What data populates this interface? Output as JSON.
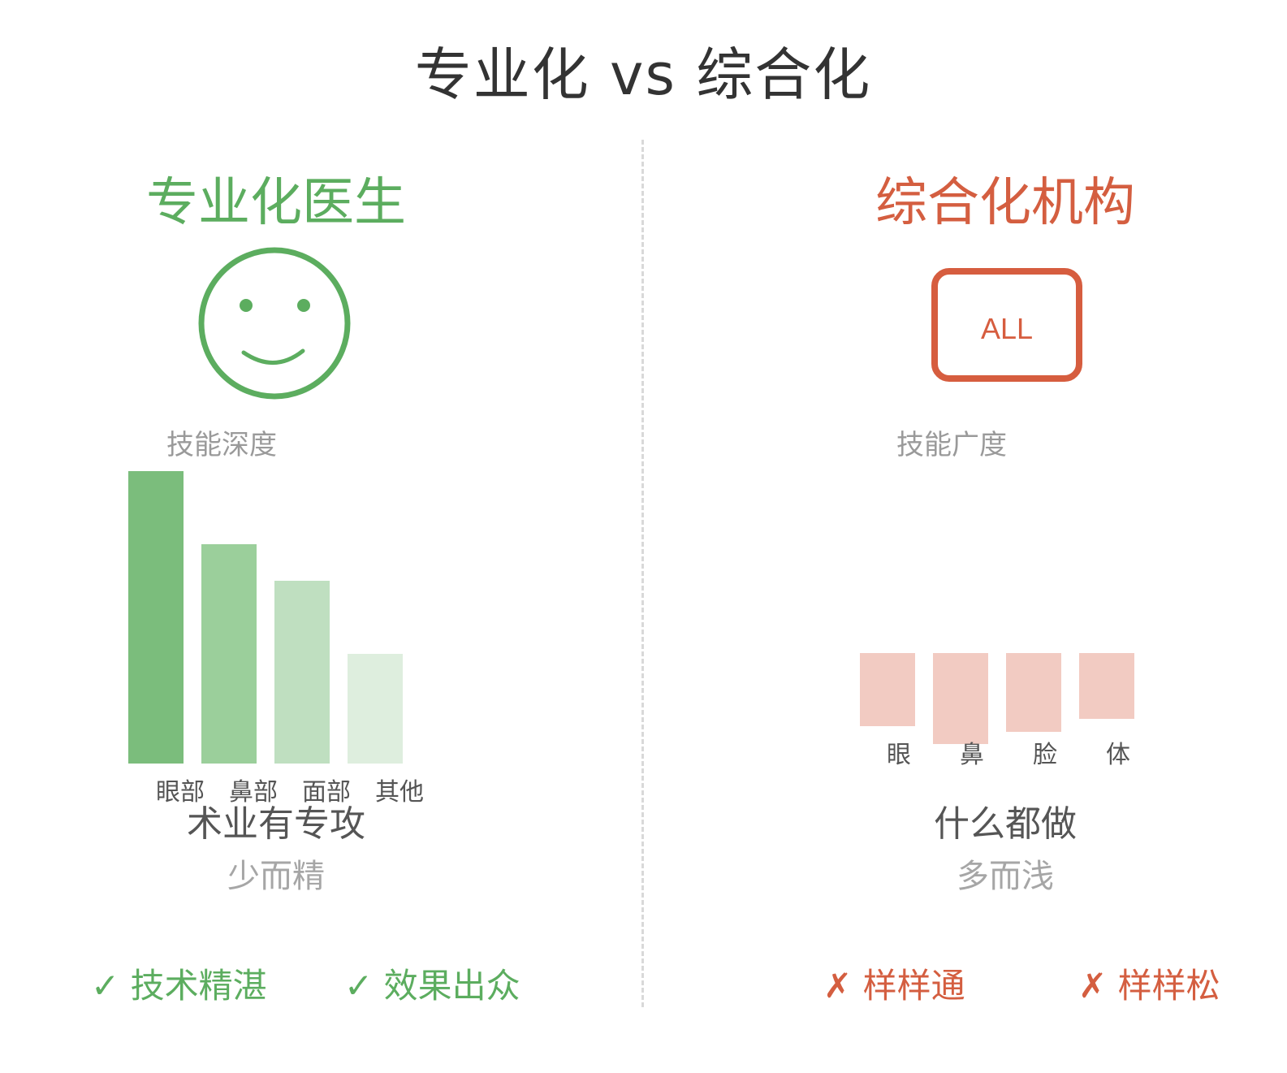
{
  "title": "专业化 vs 综合化",
  "left": {
    "heading": "专业化医生",
    "icon": "smiley-face-icon",
    "metric_label": "技能深度",
    "summary": "术业有专攻",
    "sub": "少而精",
    "points": [
      {
        "mark": "✓",
        "text": "技术精湛"
      },
      {
        "mark": "✓",
        "text": "效果出众"
      }
    ],
    "color": "#5cad5f"
  },
  "right": {
    "heading": "综合化机构",
    "badge": "ALL",
    "metric_label": "技能广度",
    "summary": "什么都做",
    "sub": "多而浅",
    "points": [
      {
        "mark": "✗",
        "text": "样样通"
      },
      {
        "mark": "✗",
        "text": "样样松"
      }
    ],
    "color": "#d45e40"
  },
  "chart_data": [
    {
      "type": "bar",
      "categories": [
        "眼部",
        "鼻部",
        "面部",
        "其他"
      ],
      "values": [
        100,
        75,
        62.5,
        37.5
      ],
      "colors": [
        "#7bbd7c",
        "#9bcf9b",
        "#bfdfc0",
        "#deeede"
      ]
    },
    {
      "type": "bar",
      "categories": [
        "眼",
        "鼻",
        "脸",
        "体"
      ],
      "values": [
        25,
        31,
        27,
        22.5
      ],
      "colors": [
        "#f2cbc2",
        "#f2cbc2",
        "#f2cbc2",
        "#f2cbc2"
      ]
    }
  ]
}
